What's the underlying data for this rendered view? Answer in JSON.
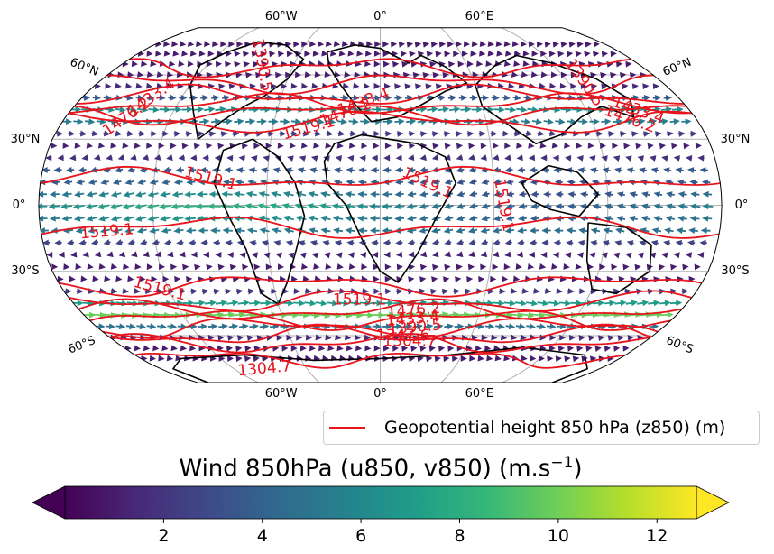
{
  "map": {
    "projection": "Robinson",
    "graticule": {
      "lon_labels_top": [
        "60°W",
        "0°",
        "60°E"
      ],
      "lon_labels_bottom": [
        "60°W",
        "0°",
        "60°E"
      ],
      "lat_labels_left": [
        "60°N",
        "30°N",
        "0°",
        "30°S",
        "60°S"
      ],
      "lat_labels_right": [
        "60°N",
        "30°N",
        "0°",
        "30°S",
        "60°S"
      ]
    },
    "contour_color": "#e8141c",
    "coastline_color": "#000000",
    "contour_labels": [
      {
        "id": "c1",
        "text": "1390.5",
        "lon": -82,
        "lat": 65,
        "angle": 80
      },
      {
        "id": "c2",
        "text": "1433.4",
        "lon": -138,
        "lat": 49,
        "angle": -35
      },
      {
        "id": "c3",
        "text": "1476.2",
        "lon": -145,
        "lat": 40,
        "angle": -35
      },
      {
        "id": "c4",
        "text": "1519.1",
        "lon": -40,
        "lat": 35,
        "angle": -15
      },
      {
        "id": "c5",
        "text": "1476.2",
        "lon": -20,
        "lat": 42,
        "angle": -20
      },
      {
        "id": "c6",
        "text": "1433.4",
        "lon": -10,
        "lat": 47,
        "angle": -20
      },
      {
        "id": "c7",
        "text": "1390.5",
        "lon": 130,
        "lat": 56,
        "angle": 55
      },
      {
        "id": "c8",
        "text": "1433.4",
        "lon": 150,
        "lat": 43,
        "angle": 20
      },
      {
        "id": "c9",
        "text": "1476.2",
        "lon": 142,
        "lat": 39,
        "angle": 20
      },
      {
        "id": "c10",
        "text": "1519.1",
        "lon": -90,
        "lat": 12,
        "angle": 15
      },
      {
        "id": "c11",
        "text": "1519.1",
        "lon": 25,
        "lat": 10,
        "angle": 25
      },
      {
        "id": "c12",
        "text": "1519.1",
        "lon": 65,
        "lat": 0,
        "angle": 80
      },
      {
        "id": "c13",
        "text": "1519.1",
        "lon": -145,
        "lat": -12,
        "angle": -5
      },
      {
        "id": "c14",
        "text": "1519.1",
        "lon": -125,
        "lat": -38,
        "angle": 15
      },
      {
        "id": "c15",
        "text": "1519.1",
        "lon": -12,
        "lat": -43,
        "angle": 0
      },
      {
        "id": "c16",
        "text": "1476.2",
        "lon": 20,
        "lat": -48,
        "angle": -5
      },
      {
        "id": "c17",
        "text": "1433.4",
        "lon": 20,
        "lat": -52,
        "angle": -5
      },
      {
        "id": "c18",
        "text": "1390.5",
        "lon": 22,
        "lat": -56,
        "angle": -5
      },
      {
        "id": "c19",
        "text": "1347.6",
        "lon": 15,
        "lat": -60,
        "angle": 0
      },
      {
        "id": "c20",
        "text": "1304.7",
        "lon": 20,
        "lat": -63,
        "angle": 0
      },
      {
        "id": "c21",
        "text": "1304.7",
        "lon": -95,
        "lat": -78,
        "angle": -5
      }
    ]
  },
  "legend": {
    "label": "Geopotential height 850 hPa (z850) (m)",
    "line_color": "#e8141c"
  },
  "colorbar": {
    "title": "Wind 850hPa (u850, v850) (m.s",
    "title_sup": "−1",
    "title_close": ")",
    "colormap": "viridis",
    "min": 0,
    "max": 12.8,
    "extend": "both",
    "ticks": [
      {
        "value": 2,
        "label": "2"
      },
      {
        "value": 4,
        "label": "4"
      },
      {
        "value": 6,
        "label": "6"
      },
      {
        "value": 8,
        "label": "8"
      },
      {
        "value": 10,
        "label": "10"
      },
      {
        "value": 12,
        "label": "12"
      }
    ],
    "stops": [
      "#440154",
      "#482878",
      "#3e4989",
      "#31688e",
      "#26828e",
      "#1f9e89",
      "#35b779",
      "#6ece58",
      "#b5de2b",
      "#fde725"
    ]
  }
}
